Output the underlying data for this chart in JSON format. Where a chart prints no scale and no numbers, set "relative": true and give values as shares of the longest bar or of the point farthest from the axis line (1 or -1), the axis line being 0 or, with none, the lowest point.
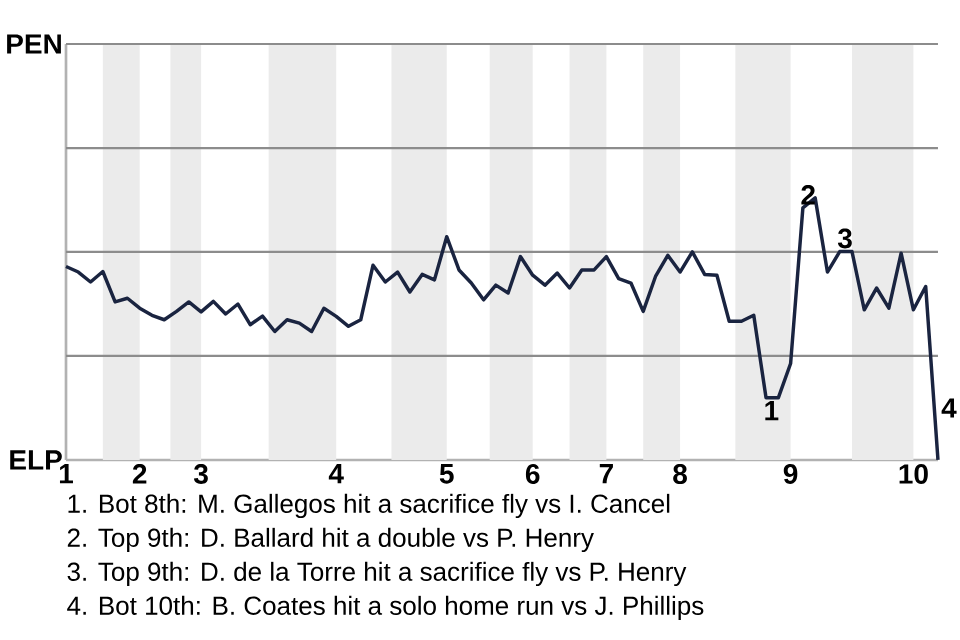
{
  "chart_data": {
    "type": "line",
    "relative": true,
    "color": "#1a2440",
    "marker": "none",
    "line_style": "solid",
    "ref_lines": [
      {
        "axis": "y",
        "value": 0.397,
        "color": "#8c8c8c"
      },
      {
        "axis": "y",
        "value": 0.794,
        "color": "#8c8c8c"
      },
      {
        "axis": "y",
        "value": 1.19,
        "color": "#8c8c8c"
      },
      {
        "axis": "y",
        "value": 1.587,
        "color": "#8c8c8c"
      }
    ],
    "categories": [
      "1",
      null,
      null,
      null,
      null,
      null,
      "2",
      null,
      null,
      null,
      null,
      "3",
      null,
      null,
      null,
      null,
      null,
      null,
      null,
      null,
      null,
      null,
      "4",
      null,
      null,
      null,
      null,
      null,
      null,
      null,
      null,
      "5",
      null,
      null,
      null,
      null,
      null,
      null,
      "6",
      null,
      null,
      null,
      null,
      null,
      "7",
      null,
      null,
      null,
      null,
      null,
      "8",
      null,
      null,
      null,
      null,
      null,
      null,
      null,
      null,
      "9",
      null,
      null,
      null,
      null,
      null,
      null,
      null,
      null,
      null,
      "10",
      null,
      null
    ],
    "values": [
      0.738,
      0.717,
      0.679,
      0.719,
      0.603,
      0.617,
      0.579,
      0.552,
      0.535,
      0.567,
      0.603,
      0.565,
      0.605,
      0.557,
      0.595,
      0.516,
      0.549,
      0.49,
      0.535,
      0.522,
      0.49,
      0.579,
      0.548,
      0.51,
      0.535,
      0.743,
      0.679,
      0.717,
      0.641,
      0.708,
      0.687,
      0.852,
      0.725,
      0.675,
      0.611,
      0.667,
      0.637,
      0.776,
      0.705,
      0.667,
      0.713,
      0.656,
      0.725,
      0.725,
      0.776,
      0.692,
      0.675,
      0.567,
      0.7,
      0.781,
      0.717,
      0.794,
      0.708,
      0.705,
      0.529,
      0.529,
      0.552,
      0.237,
      0.237,
      0.368,
      0.962,
      1,
      0.717,
      0.795,
      0.795,
      0.573,
      0.656,
      0.579,
      0.789,
      0.573,
      0.662,
      0
    ],
    "annotations": [
      {
        "text": "1",
        "y": 0.237
      },
      {
        "text": "2",
        "y": 0.962
      },
      {
        "text": "3",
        "y": 0.795
      },
      "4",
      "PEN",
      "ELP",
      "1. Bot 8th: M. Gallegos hit a sacrifice fly vs I. Cancel",
      "2. Top 9th: D. Ballard hit a double vs P. Henry",
      "3. Top 9th: D. de la Torre hit a sacrifice fly vs P. Henry",
      "4. Bot 10th: B. Coates hit a solo home run vs J. Phillips"
    ]
  }
}
